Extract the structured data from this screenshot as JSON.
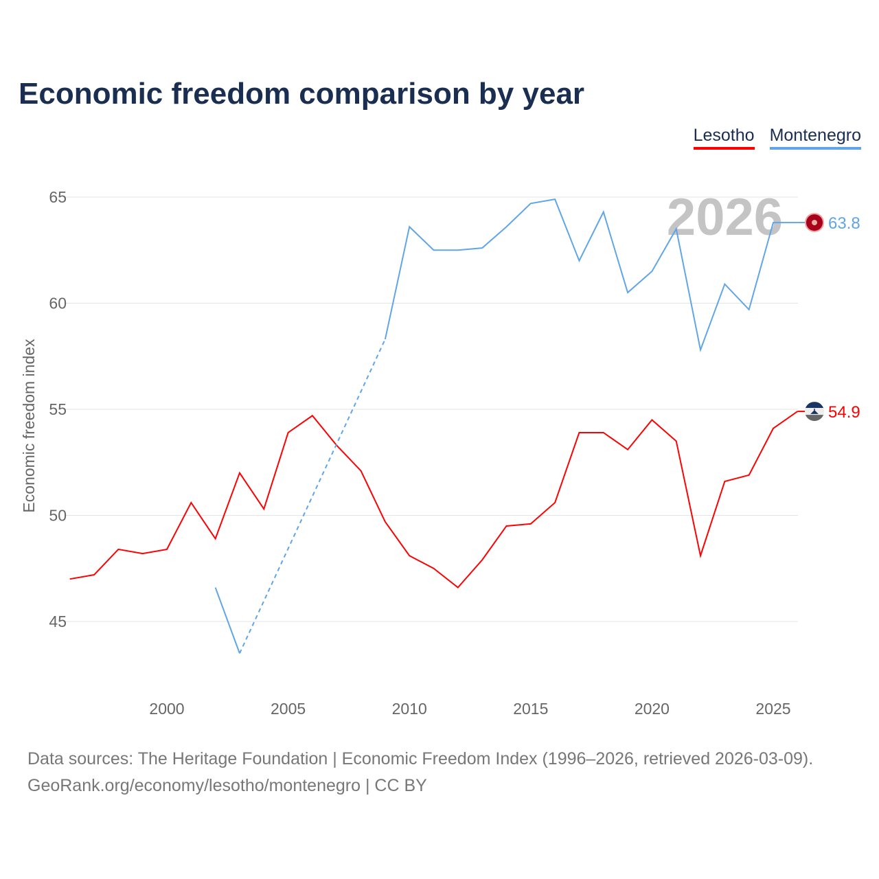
{
  "title": "Economic freedom comparison by year",
  "footer": {
    "line1": "Data sources: The Heritage Foundation | Economic Freedom Index (1996–2026, retrieved 2026-03-09).",
    "line2": "GeoRank.org/economy/lesotho/montenegro | CC BY"
  },
  "chart_data": {
    "type": "line",
    "title": "Economic freedom comparison by year",
    "xlabel": "",
    "ylabel": "Economic freedom index",
    "xlim": [
      1996,
      2026
    ],
    "ylim": [
      42,
      66
    ],
    "yticks": [
      45,
      50,
      55,
      60,
      65
    ],
    "xticks": [
      2000,
      2005,
      2010,
      2015,
      2020,
      2025
    ],
    "grid": true,
    "legend_placement": "top-right",
    "year_watermark": "2026",
    "x": [
      1996,
      1997,
      1998,
      1999,
      2000,
      2001,
      2002,
      2003,
      2004,
      2005,
      2006,
      2007,
      2008,
      2009,
      2010,
      2011,
      2012,
      2013,
      2014,
      2015,
      2016,
      2017,
      2018,
      2019,
      2020,
      2021,
      2022,
      2023,
      2024,
      2025,
      2026
    ],
    "series": [
      {
        "name": "Lesotho",
        "color": "#ff0000",
        "flag": "lesotho-flag",
        "end_label": "54.9",
        "values": [
          47.0,
          47.2,
          48.4,
          48.2,
          48.4,
          50.6,
          48.9,
          52.0,
          50.3,
          53.9,
          54.7,
          53.3,
          52.1,
          49.7,
          48.1,
          47.5,
          46.6,
          47.9,
          49.5,
          49.6,
          50.6,
          53.9,
          53.9,
          53.1,
          54.5,
          53.5,
          48.1,
          51.6,
          51.9,
          54.1,
          54.9
        ]
      },
      {
        "name": "Montenegro",
        "color": "#5fa5e8",
        "flag": "montenegro-flag",
        "end_label": "63.8",
        "values": [
          null,
          null,
          null,
          null,
          null,
          null,
          46.6,
          43.5,
          null,
          null,
          null,
          null,
          null,
          58.3,
          63.6,
          62.5,
          62.5,
          62.6,
          63.6,
          64.7,
          64.9,
          62.0,
          64.3,
          60.5,
          61.5,
          63.5,
          57.8,
          60.9,
          59.7,
          63.8,
          63.8
        ]
      }
    ]
  }
}
